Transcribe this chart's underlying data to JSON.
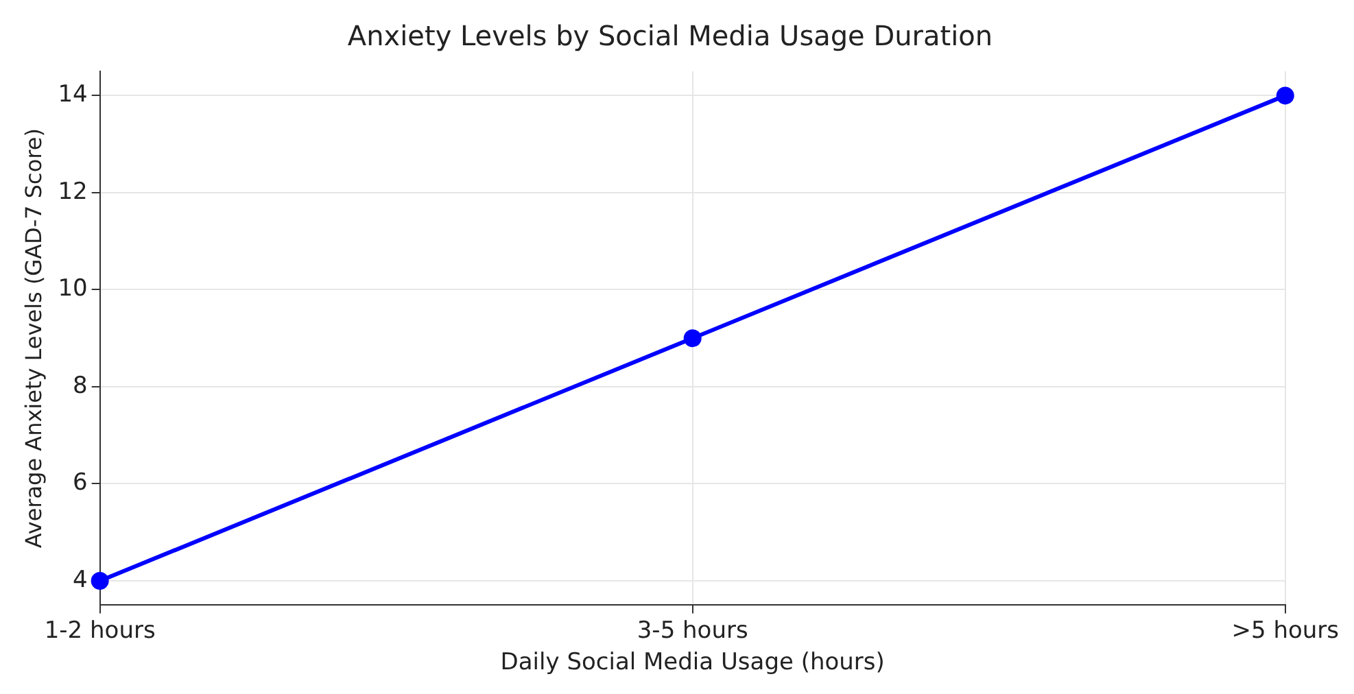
{
  "chart_data": {
    "type": "line",
    "title": "Anxiety Levels by Social Media Usage Duration",
    "xlabel": "Daily Social Media Usage (hours)",
    "ylabel": "Average Anxiety Levels (GAD-7 Score)",
    "categories": [
      "1-2 hours",
      "3-5 hours",
      ">5 hours"
    ],
    "series": [
      {
        "color": "#0000ff",
        "values": [
          4,
          9,
          14
        ]
      }
    ],
    "ylim": [
      3.5,
      14.5
    ],
    "yticks": [
      4,
      6,
      8,
      10,
      12,
      14
    ],
    "grid": true,
    "marker": "circle",
    "line_style": "solid",
    "legend": false
  }
}
